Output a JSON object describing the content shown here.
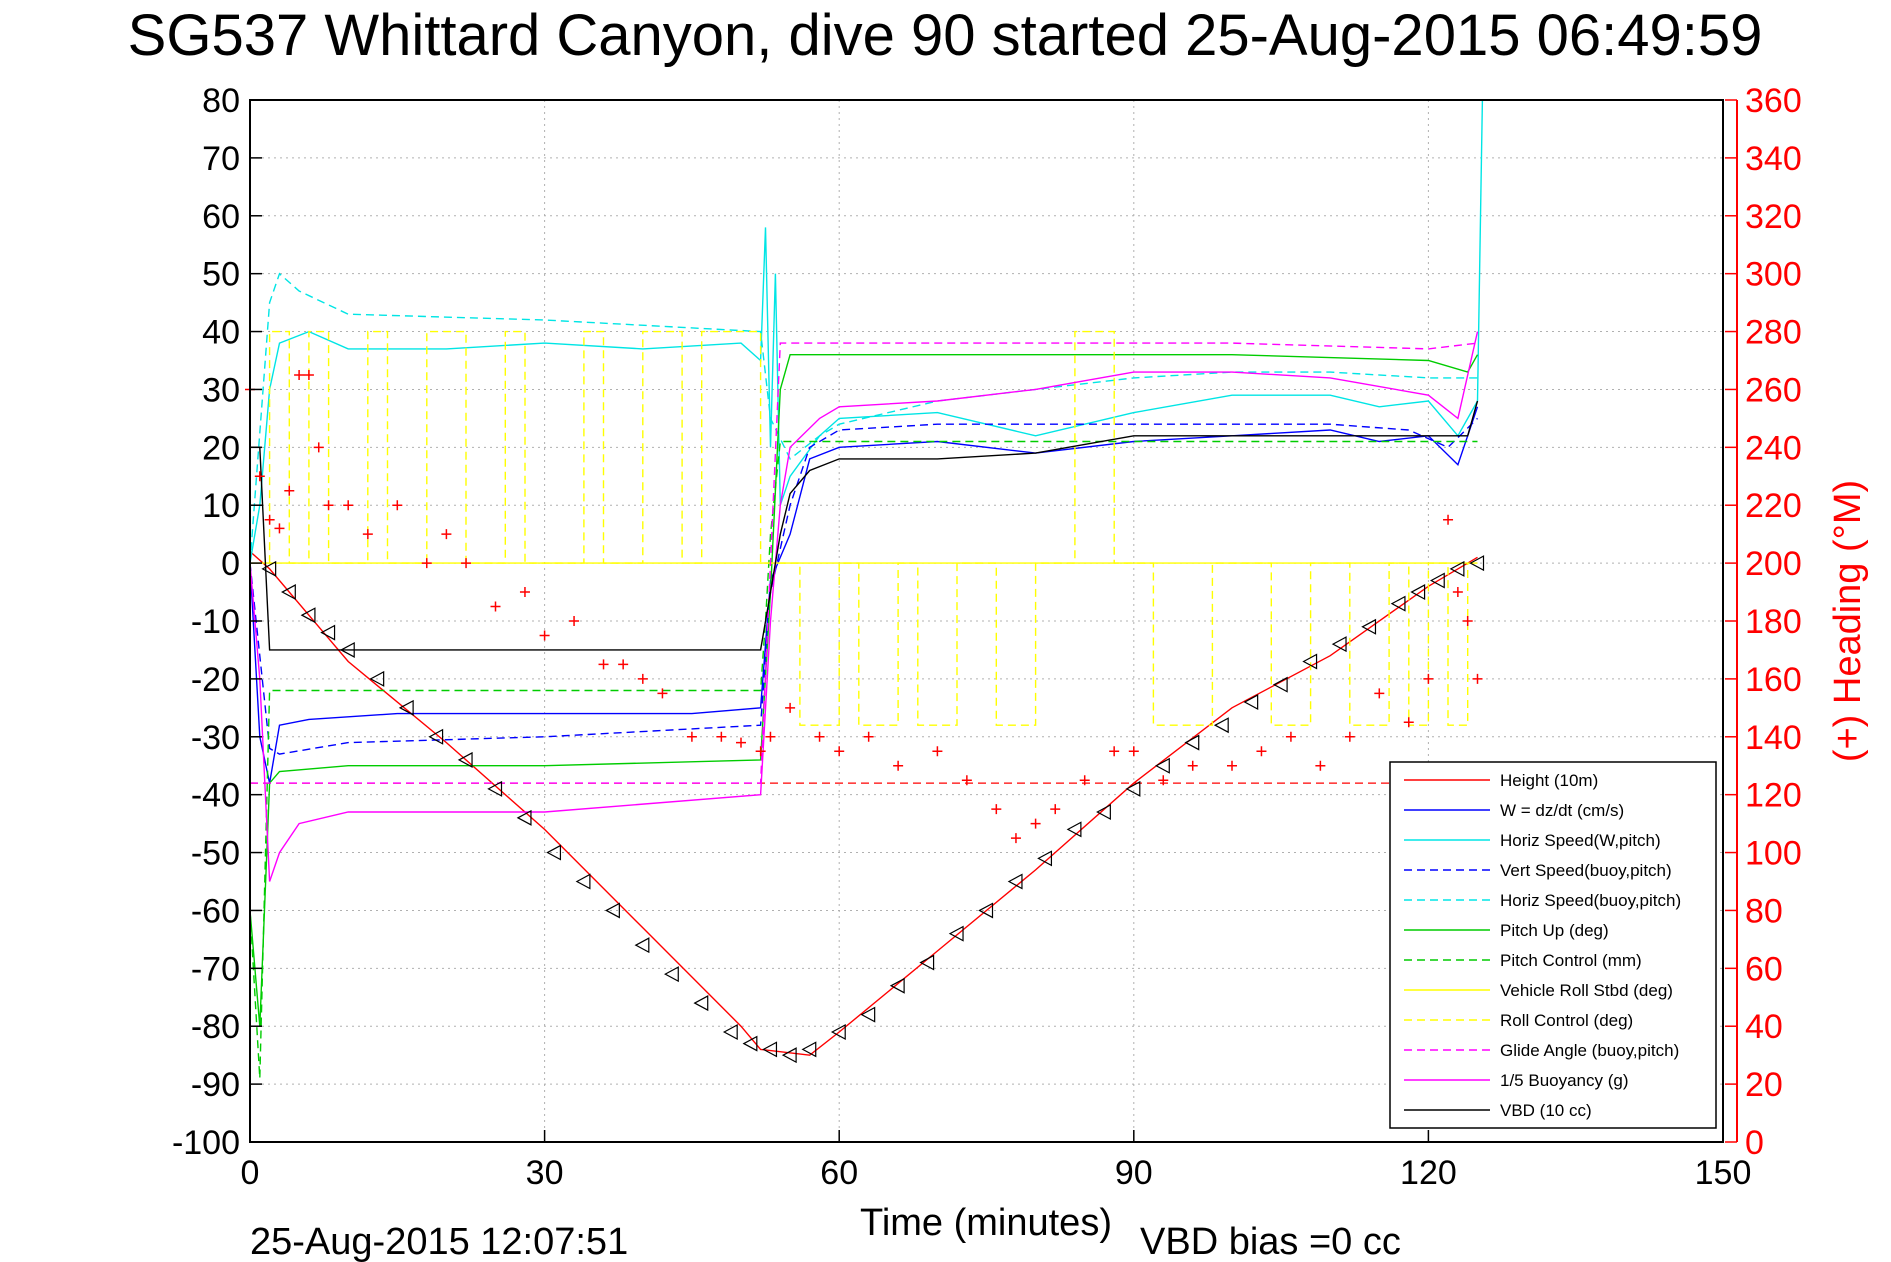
{
  "chart_data": {
    "type": "line",
    "title": "SG537 Whittard Canyon, dive 90 started 25-Aug-2015 06:49:59",
    "xlabel": "Time (minutes)",
    "ylabel": "",
    "ylabel_right": "(+) Heading (°M)",
    "xlim": [
      0,
      150
    ],
    "ylim": [
      -100,
      80
    ],
    "ylim_right": [
      0,
      360
    ],
    "x_ticks": [
      "0",
      "30",
      "60",
      "90",
      "120",
      "150"
    ],
    "y_ticks": [
      "80",
      "70",
      "60",
      "50",
      "40",
      "30",
      "20",
      "10",
      "0",
      "-10",
      "-20",
      "-30",
      "-40",
      "-50",
      "-60",
      "-70",
      "-80",
      "-90",
      "-100"
    ],
    "y_right_ticks": [
      "360",
      "340",
      "320",
      "300",
      "280",
      "260",
      "240",
      "220",
      "200",
      "180",
      "160",
      "140",
      "120",
      "100",
      "80",
      "60",
      "40",
      "20",
      "0"
    ],
    "grid": true,
    "legend_position": "bottom-right",
    "footer_left": "25-Aug-2015 12:07:51",
    "footer_right": "VBD bias =0 cc",
    "series": [
      {
        "name": "Height (10m)",
        "color": "#ff0000",
        "dash": "solid",
        "x": [
          0,
          2,
          10,
          20,
          30,
          40,
          50,
          52,
          57,
          60,
          70,
          80,
          90,
          100,
          110,
          120,
          125
        ],
        "y": [
          2,
          -1,
          -17,
          -31,
          -46,
          -63,
          -80,
          -84,
          -85,
          -81,
          -67,
          -53,
          -38,
          -25,
          -16,
          -4,
          1
        ]
      },
      {
        "name": "W = dz/dt (cm/s)",
        "color": "#0000ff",
        "dash": "solid",
        "x": [
          0,
          1,
          2,
          3,
          6,
          15,
          30,
          45,
          52,
          53,
          55,
          57,
          60,
          70,
          80,
          90,
          100,
          110,
          115,
          120,
          123,
          125
        ],
        "y": [
          0,
          -30,
          -38,
          -28,
          -27,
          -26,
          -26,
          -26,
          -25,
          -3,
          5,
          18,
          20,
          21,
          19,
          21,
          22,
          23,
          21,
          22,
          17,
          27
        ]
      },
      {
        "name": "Horiz Speed(W,pitch)",
        "color": "#00e5e5",
        "dash": "solid",
        "x": [
          0,
          1,
          2,
          3,
          6,
          10,
          20,
          30,
          40,
          50,
          52,
          52.5,
          53,
          53.5,
          54,
          55,
          58,
          60,
          70,
          80,
          90,
          100,
          110,
          115,
          120,
          123,
          125,
          125.5
        ],
        "y": [
          0,
          10,
          30,
          38,
          40,
          37,
          37,
          38,
          37,
          38,
          35,
          58,
          20,
          50,
          10,
          15,
          22,
          25,
          26,
          22,
          26,
          29,
          29,
          27,
          28,
          22,
          28,
          80
        ]
      },
      {
        "name": "Vert Speed(buoy,pitch)",
        "color": "#0000ff",
        "dash": "dashed",
        "x": [
          0,
          2,
          3,
          10,
          30,
          52,
          53,
          55,
          57,
          60,
          70,
          80,
          90,
          110,
          118,
          122,
          125
        ],
        "y": [
          0,
          -32,
          -33,
          -31,
          -30,
          -28,
          -5,
          10,
          20,
          23,
          24,
          24,
          24,
          24,
          23,
          20,
          25
        ]
      },
      {
        "name": "Horiz Speed(buoy,pitch)",
        "color": "#00e5e5",
        "dash": "dashed",
        "x": [
          0,
          2,
          3,
          5,
          10,
          30,
          52,
          53,
          55,
          58,
          60,
          70,
          80,
          90,
          100,
          110,
          120,
          125
        ],
        "y": [
          0,
          45,
          50,
          47,
          43,
          42,
          40,
          25,
          18,
          22,
          24,
          28,
          30,
          32,
          33,
          33,
          32,
          32
        ]
      },
      {
        "name": "Pitch Up (deg)",
        "color": "#00cc00",
        "dash": "solid",
        "x": [
          0,
          1,
          2,
          3,
          10,
          30,
          52,
          53,
          54,
          55,
          60,
          80,
          100,
          120,
          124,
          125
        ],
        "y": [
          -60,
          -80,
          -38,
          -36,
          -35,
          -35,
          -34,
          -5,
          30,
          36,
          36,
          36,
          36,
          35,
          33,
          36
        ]
      },
      {
        "name": "Pitch Control (mm)",
        "color": "#00cc00",
        "dash": "dashed",
        "x": [
          0,
          1,
          2,
          52,
          52.5,
          53,
          54,
          125
        ],
        "y": [
          -60,
          -89,
          -22,
          -22,
          -10,
          5,
          21,
          21
        ]
      },
      {
        "name": "Vehicle Roll Stbd (deg)",
        "color": "#ffff00",
        "dash": "solid",
        "x": [
          0,
          125
        ],
        "y": [
          0,
          0
        ]
      },
      {
        "name": "Roll Control (deg)",
        "color": "#ffff00",
        "dash": "dashed",
        "x": [
          2,
          2,
          4,
          4,
          6,
          6,
          8,
          8,
          12,
          12,
          14,
          14,
          18,
          18,
          22,
          22,
          26,
          26,
          28,
          28,
          34,
          34,
          36,
          36,
          40,
          40,
          44,
          44,
          46,
          46,
          52,
          52,
          56,
          56,
          60,
          60,
          62,
          62,
          66,
          66,
          68,
          68,
          72,
          72,
          76,
          76,
          80,
          80,
          84,
          84,
          88,
          88,
          92,
          92,
          98,
          98,
          104,
          104,
          108,
          108,
          112,
          112,
          116,
          116,
          118,
          118,
          120,
          120,
          122,
          122,
          124,
          124
        ],
        "y": [
          0,
          40,
          40,
          0,
          0,
          40,
          40,
          0,
          0,
          40,
          40,
          0,
          0,
          40,
          40,
          0,
          0,
          40,
          40,
          0,
          0,
          40,
          40,
          0,
          0,
          40,
          40,
          0,
          0,
          40,
          40,
          0,
          0,
          -28,
          -28,
          0,
          0,
          -28,
          -28,
          0,
          0,
          -28,
          -28,
          0,
          0,
          -28,
          -28,
          0,
          0,
          40,
          40,
          0,
          0,
          -28,
          -28,
          0,
          0,
          -28,
          -28,
          0,
          0,
          -28,
          -28,
          0,
          0,
          -28,
          -28,
          0,
          0,
          -28,
          -28,
          0
        ]
      },
      {
        "name": "Glide Angle (buoy,pitch)",
        "color": "#ff00ff",
        "dash": "dashed",
        "x": [
          0,
          2,
          30,
          52,
          53,
          54,
          55,
          60,
          80,
          100,
          120,
          125
        ],
        "y": [
          -38,
          -38,
          -38,
          -38,
          0,
          38,
          38,
          38,
          38,
          38,
          37,
          38
        ]
      },
      {
        "name": "1/5 Buoyancy (g)",
        "color": "#ff00ff",
        "dash": "solid",
        "x": [
          0,
          1,
          2,
          3,
          5,
          10,
          30,
          52,
          53,
          54,
          55,
          58,
          60,
          70,
          80,
          90,
          100,
          110,
          120,
          123,
          125
        ],
        "y": [
          0,
          -20,
          -55,
          -50,
          -45,
          -43,
          -43,
          -40,
          -10,
          10,
          20,
          25,
          27,
          28,
          30,
          33,
          33,
          32,
          29,
          25,
          40
        ]
      },
      {
        "name": "VBD (10 cc)",
        "color": "#000000",
        "dash": "solid",
        "x": [
          0,
          1,
          2,
          52,
          53,
          54,
          55,
          57,
          60,
          70,
          80,
          90,
          100,
          110,
          120,
          124,
          125
        ],
        "y": [
          20,
          20,
          -15,
          -15,
          -5,
          5,
          12,
          16,
          18,
          18,
          19,
          22,
          22,
          22,
          22,
          22,
          28
        ]
      }
    ],
    "markers": {
      "heading": {
        "label": "(+) Heading (°M)",
        "color": "#ff0000",
        "symbol": "+",
        "x": [
          0,
          1,
          2,
          3,
          4,
          5,
          6,
          7,
          8,
          10,
          12,
          15,
          18,
          20,
          22,
          25,
          28,
          30,
          33,
          36,
          38,
          40,
          42,
          45,
          48,
          50,
          52,
          53,
          55,
          58,
          60,
          63,
          66,
          70,
          73,
          76,
          78,
          80,
          82,
          85,
          88,
          90,
          93,
          96,
          100,
          103,
          106,
          109,
          112,
          115,
          118,
          120,
          122,
          123,
          124,
          125
        ],
        "y": [
          260,
          230,
          215,
          212,
          225,
          265,
          265,
          240,
          220,
          220,
          210,
          220,
          200,
          210,
          200,
          185,
          190,
          175,
          180,
          165,
          165,
          160,
          155,
          140,
          140,
          138,
          135,
          140,
          150,
          140,
          135,
          140,
          130,
          135,
          125,
          115,
          105,
          110,
          115,
          125,
          135,
          135,
          125,
          130,
          130,
          135,
          140,
          130,
          140,
          155,
          145,
          160,
          215,
          190,
          180,
          160
        ]
      },
      "height_triangles": {
        "symbol": "triangle-left",
        "color": "#000000",
        "x": [
          2,
          4,
          6,
          8,
          10,
          13,
          16,
          19,
          22,
          25,
          28,
          31,
          34,
          37,
          40,
          43,
          46,
          49,
          51,
          53,
          55,
          57,
          60,
          63,
          66,
          69,
          72,
          75,
          78,
          81,
          84,
          87,
          90,
          93,
          96,
          99,
          102,
          105,
          108,
          111,
          114,
          117,
          119,
          121,
          123,
          125
        ],
        "y": [
          -1,
          -5,
          -9,
          -12,
          -15,
          -20,
          -25,
          -30,
          -34,
          -39,
          -44,
          -50,
          -55,
          -60,
          -66,
          -71,
          -76,
          -81,
          -83,
          -84,
          -85,
          -84,
          -81,
          -78,
          -73,
          -69,
          -64,
          -60,
          -55,
          -51,
          -46,
          -43,
          -39,
          -35,
          -31,
          -28,
          -24,
          -21,
          -17,
          -14,
          -11,
          -7,
          -5,
          -3,
          -1,
          0
        ]
      }
    },
    "reference_lines": [
      {
        "color": "#ff0000",
        "dash": "dashed",
        "y": -38,
        "x": [
          0,
          120
        ]
      }
    ]
  }
}
